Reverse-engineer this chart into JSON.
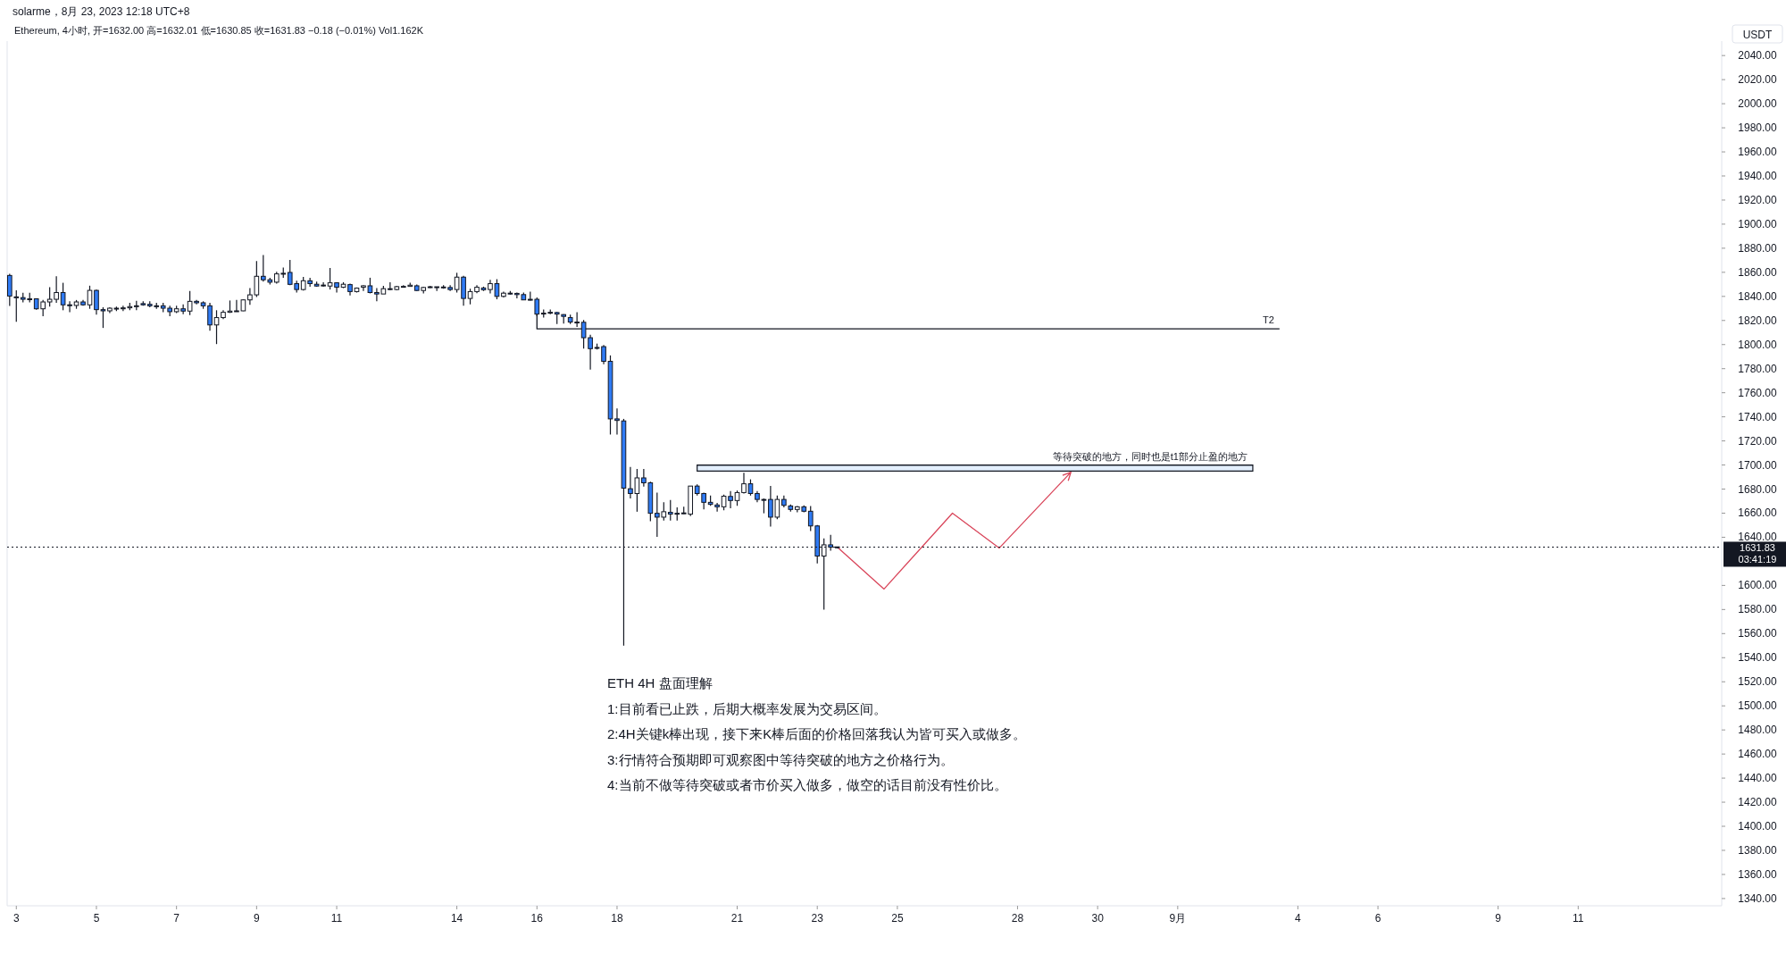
{
  "chart_data": {
    "type": "candlestick",
    "title": "Ethereum, 4小时, 开=1632.00 高=1632.01 低=1630.85 收=1631.83 −0.18 (−0.01%) Vol1.162K",
    "ylabel": "USDT",
    "x": [
      "2023-08-02T20:00",
      "2023-08-03T00:00",
      "2023-08-03T04:00",
      "2023-08-03T08:00",
      "2023-08-03T12:00",
      "2023-08-03T16:00",
      "2023-08-03T20:00",
      "2023-08-04T00:00",
      "2023-08-04T04:00",
      "2023-08-04T08:00",
      "2023-08-04T12:00",
      "2023-08-04T16:00",
      "2023-08-04T20:00",
      "2023-08-05T00:00",
      "2023-08-05T04:00",
      "2023-08-05T08:00",
      "2023-08-05T12:00",
      "2023-08-05T16:00",
      "2023-08-05T20:00",
      "2023-08-06T00:00",
      "2023-08-06T04:00",
      "2023-08-06T08:00",
      "2023-08-06T12:00",
      "2023-08-06T16:00",
      "2023-08-06T20:00",
      "2023-08-07T00:00",
      "2023-08-07T04:00",
      "2023-08-07T08:00",
      "2023-08-07T12:00",
      "2023-08-07T16:00",
      "2023-08-07T20:00",
      "2023-08-08T00:00",
      "2023-08-08T04:00",
      "2023-08-08T08:00",
      "2023-08-08T12:00",
      "2023-08-08T16:00",
      "2023-08-08T20:00",
      "2023-08-09T00:00",
      "2023-08-09T04:00",
      "2023-08-09T08:00",
      "2023-08-09T12:00",
      "2023-08-09T16:00",
      "2023-08-09T20:00",
      "2023-08-10T00:00",
      "2023-08-10T04:00",
      "2023-08-10T08:00",
      "2023-08-10T12:00",
      "2023-08-10T16:00",
      "2023-08-10T20:00",
      "2023-08-11T00:00",
      "2023-08-11T04:00",
      "2023-08-11T08:00",
      "2023-08-11T12:00",
      "2023-08-11T16:00",
      "2023-08-11T20:00",
      "2023-08-12T00:00",
      "2023-08-12T04:00",
      "2023-08-12T08:00",
      "2023-08-12T12:00",
      "2023-08-12T16:00",
      "2023-08-12T20:00",
      "2023-08-13T00:00",
      "2023-08-13T04:00",
      "2023-08-13T08:00",
      "2023-08-13T12:00",
      "2023-08-13T16:00",
      "2023-08-13T20:00",
      "2023-08-14T00:00",
      "2023-08-14T04:00",
      "2023-08-14T08:00",
      "2023-08-14T12:00",
      "2023-08-14T16:00",
      "2023-08-14T20:00",
      "2023-08-15T00:00",
      "2023-08-15T04:00",
      "2023-08-15T08:00",
      "2023-08-15T12:00",
      "2023-08-15T16:00",
      "2023-08-15T20:00",
      "2023-08-16T00:00",
      "2023-08-16T04:00",
      "2023-08-16T08:00",
      "2023-08-16T12:00",
      "2023-08-16T16:00",
      "2023-08-16T20:00",
      "2023-08-17T00:00",
      "2023-08-17T04:00",
      "2023-08-17T08:00",
      "2023-08-17T12:00",
      "2023-08-17T16:00",
      "2023-08-17T20:00",
      "2023-08-18T00:00",
      "2023-08-18T04:00",
      "2023-08-18T08:00",
      "2023-08-18T12:00",
      "2023-08-18T16:00",
      "2023-08-18T20:00",
      "2023-08-19T00:00",
      "2023-08-19T04:00",
      "2023-08-19T08:00",
      "2023-08-19T12:00",
      "2023-08-19T16:00",
      "2023-08-19T20:00",
      "2023-08-20T00:00",
      "2023-08-20T04:00",
      "2023-08-20T08:00",
      "2023-08-20T12:00",
      "2023-08-20T16:00",
      "2023-08-20T20:00",
      "2023-08-21T00:00",
      "2023-08-21T04:00",
      "2023-08-21T08:00",
      "2023-08-21T12:00",
      "2023-08-21T16:00",
      "2023-08-21T20:00",
      "2023-08-22T00:00",
      "2023-08-22T04:00",
      "2023-08-22T08:00",
      "2023-08-22T12:00",
      "2023-08-22T16:00",
      "2023-08-22T20:00",
      "2023-08-23T00:00",
      "2023-08-23T04:00",
      "2023-08-23T08:00",
      "2023-08-23T12:00"
    ],
    "ohlc": [
      [
        1857.4,
        1858.7,
        1832,
        1840.3
      ],
      [
        1839.5,
        1845,
        1819,
        1839.6
      ],
      [
        1839,
        1843,
        1835,
        1837.6
      ],
      [
        1838,
        1843,
        1835,
        1837.8
      ],
      [
        1838,
        1838.3,
        1829,
        1829.7
      ],
      [
        1829.7,
        1837,
        1823.6,
        1835.4
      ],
      [
        1835.4,
        1847.6,
        1831.5,
        1837.6
      ],
      [
        1837.6,
        1856.7,
        1834.7,
        1843.2
      ],
      [
        1843.2,
        1851.3,
        1828.5,
        1833
      ],
      [
        1833,
        1835.9,
        1826.8,
        1832.5
      ],
      [
        1832.5,
        1837,
        1829.7,
        1835.4
      ],
      [
        1835.4,
        1837,
        1832.2,
        1833
      ],
      [
        1833,
        1848.9,
        1829.7,
        1845
      ],
      [
        1845,
        1845.7,
        1824.9,
        1829
      ],
      [
        1829,
        1831,
        1813.8,
        1828
      ],
      [
        1828,
        1831,
        1826.1,
        1830.2
      ],
      [
        1830.2,
        1831.5,
        1827.8,
        1829.7
      ],
      [
        1829.7,
        1832.2,
        1827.8,
        1830.5
      ],
      [
        1830.5,
        1834.7,
        1828.5,
        1831.5
      ],
      [
        1831.5,
        1836.4,
        1828.5,
        1832.2
      ],
      [
        1834,
        1836,
        1832.2,
        1833
      ],
      [
        1833.4,
        1835.9,
        1831,
        1832.2
      ],
      [
        1832.2,
        1834.7,
        1829.7,
        1832
      ],
      [
        1832.2,
        1834.7,
        1826.8,
        1830.2
      ],
      [
        1830.2,
        1832.2,
        1823.6,
        1827.3
      ],
      [
        1827.3,
        1832.2,
        1826.1,
        1829.7
      ],
      [
        1829.7,
        1833.4,
        1825.3,
        1827.8
      ],
      [
        1827.8,
        1844.5,
        1824.4,
        1835.9
      ],
      [
        1835.9,
        1837.1,
        1833.4,
        1834.7
      ],
      [
        1834.7,
        1835.9,
        1829.7,
        1832.2
      ],
      [
        1832.2,
        1834.7,
        1811.4,
        1816.3
      ],
      [
        1816.3,
        1828.5,
        1800.4,
        1822.4
      ],
      [
        1822.4,
        1828.5,
        1821.2,
        1826.8
      ],
      [
        1826.8,
        1836.6,
        1826.3,
        1827.8
      ],
      [
        1827.8,
        1837.1,
        1827.3,
        1828
      ],
      [
        1828,
        1837.4,
        1827.8,
        1837.1
      ],
      [
        1837.1,
        1846.9,
        1833,
        1841.3
      ],
      [
        1841.3,
        1869.4,
        1839.5,
        1856.7
      ],
      [
        1856.7,
        1874.3,
        1852.3,
        1853.8
      ],
      [
        1853.8,
        1855.5,
        1849.8,
        1851.8
      ],
      [
        1851.8,
        1860.4,
        1850.6,
        1858.7
      ],
      [
        1859,
        1864,
        1855.5,
        1859.2
      ],
      [
        1859.9,
        1870.2,
        1849.3,
        1850
      ],
      [
        1850.6,
        1853,
        1843.2,
        1845.7
      ],
      [
        1845.7,
        1856.2,
        1844.9,
        1853
      ],
      [
        1853,
        1855.5,
        1848.1,
        1850.6
      ],
      [
        1850.1,
        1852.3,
        1848.1,
        1848.6
      ],
      [
        1849.3,
        1851.8,
        1848.1,
        1849.4
      ],
      [
        1848.6,
        1863.6,
        1845.7,
        1851.3
      ],
      [
        1851.3,
        1851.8,
        1843.2,
        1847.6
      ],
      [
        1847.6,
        1851.8,
        1846.9,
        1850.1
      ],
      [
        1849.8,
        1850.6,
        1840.8,
        1844
      ],
      [
        1844,
        1847.4,
        1843.2,
        1846.9
      ],
      [
        1847.6,
        1849.3,
        1844.5,
        1848.8
      ],
      [
        1848.8,
        1855.5,
        1842.5,
        1843.2
      ],
      [
        1843.2,
        1846.9,
        1835.9,
        1842
      ],
      [
        1842,
        1848.8,
        1842,
        1846.4
      ],
      [
        1845.7,
        1851.8,
        1845,
        1846.4
      ],
      [
        1845.7,
        1848.8,
        1845,
        1848.1
      ],
      [
        1848.1,
        1849.3,
        1847.4,
        1848.3
      ],
      [
        1848.3,
        1851.3,
        1848.1,
        1849.3
      ],
      [
        1848.8,
        1849.8,
        1844.5,
        1844.9
      ],
      [
        1844.9,
        1848.1,
        1842.5,
        1847.4
      ],
      [
        1847.4,
        1848.8,
        1846.9,
        1848
      ],
      [
        1848,
        1848.1,
        1844.5,
        1847.6
      ],
      [
        1847.6,
        1849.3,
        1846.4,
        1847.8
      ],
      [
        1847.4,
        1849.3,
        1844.5,
        1845.7
      ],
      [
        1845.7,
        1859.6,
        1843.2,
        1856
      ],
      [
        1856,
        1857.2,
        1832.2,
        1838.3
      ],
      [
        1838.3,
        1846.4,
        1833.4,
        1844
      ],
      [
        1844,
        1849.3,
        1842.7,
        1847.6
      ],
      [
        1847,
        1848.1,
        1844.5,
        1845.5
      ],
      [
        1845.7,
        1853.8,
        1842.5,
        1850.6
      ],
      [
        1850.6,
        1854.3,
        1837.6,
        1840
      ],
      [
        1840,
        1844,
        1839.1,
        1842.7
      ],
      [
        1842.7,
        1844.5,
        1841.5,
        1842.5
      ],
      [
        1842.5,
        1843.2,
        1838.3,
        1841.5
      ],
      [
        1841.5,
        1843.2,
        1837.1,
        1837.1
      ],
      [
        1837.6,
        1844,
        1836.6,
        1837.4
      ],
      [
        1837.6,
        1839.1,
        1823.6,
        1825.3
      ],
      [
        1826,
        1829.2,
        1822.4,
        1826.1
      ],
      [
        1826.1,
        1829.2,
        1825.3,
        1826.8
      ],
      [
        1826.6,
        1827.3,
        1817,
        1825.3
      ],
      [
        1824.9,
        1825.3,
        1817.5,
        1823.4
      ],
      [
        1822.4,
        1824.9,
        1817,
        1818.7
      ],
      [
        1818.7,
        1826.8,
        1814.6,
        1818.5
      ],
      [
        1818.5,
        1820.4,
        1796.7,
        1805.7
      ],
      [
        1805.7,
        1808.2,
        1779.2,
        1796.6
      ],
      [
        1797.6,
        1800.8,
        1795.9,
        1797
      ],
      [
        1798.3,
        1799.6,
        1783.6,
        1786.1
      ],
      [
        1786.1,
        1791,
        1725.3,
        1738.3
      ],
      [
        1738.3,
        1746.9,
        1725.3,
        1737
      ],
      [
        1736.6,
        1738.3,
        1550,
        1680.8
      ],
      [
        1680.3,
        1698.4,
        1672.2,
        1676.3
      ],
      [
        1676.3,
        1696.7,
        1661.2,
        1689.3
      ],
      [
        1689.3,
        1696.7,
        1682,
        1685.2
      ],
      [
        1685.2,
        1686.1,
        1653.3,
        1659.9
      ],
      [
        1659.9,
        1677.1,
        1640.3,
        1656.7
      ],
      [
        1656.7,
        1669,
        1653.8,
        1661.2
      ],
      [
        1660.7,
        1670.9,
        1653.8,
        1659.2
      ],
      [
        1659.9,
        1664.8,
        1653.8,
        1659.8
      ],
      [
        1659.8,
        1665.3,
        1659.2,
        1660.2
      ],
      [
        1659.2,
        1682.6,
        1657.5,
        1682.5
      ],
      [
        1682.5,
        1684,
        1674.6,
        1676.3
      ],
      [
        1676.3,
        1677.1,
        1663.1,
        1669
      ],
      [
        1669,
        1674.6,
        1666.1,
        1667.3
      ],
      [
        1666.8,
        1668.5,
        1661.2,
        1665.3
      ],
      [
        1665.3,
        1675.4,
        1662.4,
        1674.1
      ],
      [
        1673.9,
        1678.3,
        1664.1,
        1670.5
      ],
      [
        1670.5,
        1678.8,
        1666.1,
        1677.1
      ],
      [
        1677.1,
        1693.5,
        1676.3,
        1684.4
      ],
      [
        1684.4,
        1688.1,
        1674.6,
        1676.3
      ],
      [
        1676.3,
        1678.3,
        1669,
        1671.4
      ],
      [
        1671.4,
        1672.2,
        1659.9,
        1671.2
      ],
      [
        1671.4,
        1682.7,
        1648.9,
        1656.7
      ],
      [
        1656.7,
        1674.6,
        1655,
        1671.4
      ],
      [
        1671.4,
        1674.6,
        1664.8,
        1666.5
      ],
      [
        1666,
        1667.3,
        1661.2,
        1663.1
      ],
      [
        1663.1,
        1666,
        1660.7,
        1665.3
      ],
      [
        1665.3,
        1666.5,
        1660.7,
        1661.6
      ],
      [
        1661.6,
        1666,
        1645.2,
        1649.4
      ],
      [
        1649.4,
        1650.1,
        1618.3,
        1624.4
      ],
      [
        1624.4,
        1639.1,
        1579.8,
        1633.7
      ],
      [
        1633.7,
        1642,
        1628.8,
        1631.8
      ],
      [
        1632.0,
        1632.01,
        1630.85,
        1631.83
      ]
    ],
    "series": [
      {
        "type": "line",
        "name": "T2",
        "color": "#131722",
        "x": [
          "2023-08-16T00:00",
          "2023-08-16T00:00",
          "2023-09-03T13:00"
        ],
        "values": [
          1826,
          1813,
          1813
        ]
      },
      {
        "type": "line",
        "name": "等待突破的地方，同时也是t1部分止盈的地方",
        "color": "#131722",
        "x": [
          "2023-08-20T00:00",
          "2023-09-02T21:00"
        ],
        "values": [
          1700,
          1700
        ],
        "lower": [
          1695,
          1695
        ],
        "upper": [
          1700,
          1700
        ]
      },
      {
        "type": "line",
        "color": "#d9455a",
        "x": [
          "2023-08-23T12:00",
          "2023-08-24T16:00",
          "2023-08-26T09:00",
          "2023-08-27T13:00",
          "2023-08-29T08:00"
        ],
        "values": [
          1631.8,
          1597,
          1660,
          1631,
          1694
        ]
      }
    ],
    "ref_lines": [
      {
        "axis": "y",
        "value": 1631.83,
        "label": "1631.83\n03:41:19",
        "color": "#131722",
        "line_style": "dotted"
      }
    ],
    "xlim": [
      "2023-08-02T18:30",
      "2023-09-14T14:00"
    ],
    "ylim": [
      1334,
      2052
    ],
    "xticks": [
      {
        "value": "2023-08-03",
        "label": "3"
      },
      {
        "value": "2023-08-05",
        "label": "5"
      },
      {
        "value": "2023-08-07",
        "label": "7"
      },
      {
        "value": "2023-08-09",
        "label": "9"
      },
      {
        "value": "2023-08-11",
        "label": "11"
      },
      {
        "value": "2023-08-14",
        "label": "14"
      },
      {
        "value": "2023-08-16",
        "label": "16"
      },
      {
        "value": "2023-08-18",
        "label": "18"
      },
      {
        "value": "2023-08-21",
        "label": "21"
      },
      {
        "value": "2023-08-23",
        "label": "23"
      },
      {
        "value": "2023-08-25",
        "label": "25"
      },
      {
        "value": "2023-08-28",
        "label": "28"
      },
      {
        "value": "2023-08-30",
        "label": "30"
      },
      {
        "value": "2023-09-01",
        "label": "9月"
      },
      {
        "value": "2023-09-04",
        "label": "4"
      },
      {
        "value": "2023-09-06",
        "label": "6"
      },
      {
        "value": "2023-09-09",
        "label": "9"
      },
      {
        "value": "2023-09-11",
        "label": "11"
      }
    ],
    "yticks": [
      {
        "value": 1340,
        "label": "1340.00"
      },
      {
        "value": 1360,
        "label": "1360.00"
      },
      {
        "value": 1380,
        "label": "1380.00"
      },
      {
        "value": 1400,
        "label": "1400.00"
      },
      {
        "value": 1420,
        "label": "1420.00"
      },
      {
        "value": 1440,
        "label": "1440.00"
      },
      {
        "value": 1460,
        "label": "1460.00"
      },
      {
        "value": 1480,
        "label": "1480.00"
      },
      {
        "value": 1500,
        "label": "1500.00"
      },
      {
        "value": 1520,
        "label": "1520.00"
      },
      {
        "value": 1540,
        "label": "1540.00"
      },
      {
        "value": 1560,
        "label": "1560.00"
      },
      {
        "value": 1580,
        "label": "1580.00"
      },
      {
        "value": 1600,
        "label": "1600.00"
      },
      {
        "value": 1640,
        "label": "1640.00"
      },
      {
        "value": 1660,
        "label": "1660.00"
      },
      {
        "value": 1680,
        "label": "1680.00"
      },
      {
        "value": 1700,
        "label": "1700.00"
      },
      {
        "value": 1720,
        "label": "1720.00"
      },
      {
        "value": 1740,
        "label": "1740.00"
      },
      {
        "value": 1760,
        "label": "1760.00"
      },
      {
        "value": 1780,
        "label": "1780.00"
      },
      {
        "value": 1800,
        "label": "1800.00"
      },
      {
        "value": 1820,
        "label": "1820.00"
      },
      {
        "value": 1840,
        "label": "1840.00"
      },
      {
        "value": 1860,
        "label": "1860.00"
      },
      {
        "value": 1880,
        "label": "1880.00"
      },
      {
        "value": 1900,
        "label": "1900.00"
      },
      {
        "value": 1920,
        "label": "1920.00"
      },
      {
        "value": 1940,
        "label": "1940.00"
      },
      {
        "value": 1960,
        "label": "1960.00"
      },
      {
        "value": 1980,
        "label": "1980.00"
      },
      {
        "value": 2000,
        "label": "2000.00"
      },
      {
        "value": 2020,
        "label": "2020.00"
      },
      {
        "value": 2040,
        "label": "2040.00"
      }
    ],
    "annotations": [
      "solarme，8月 23, 2023 12:18 UTC+8",
      "ETH 4H 盘面理解",
      "1:目前看已止跌，后期大概率发展为交易区间。",
      "2:4H关键k棒出现，接下来K棒后面的价格回落我认为皆可买入或做多。",
      "3:行情符合预期即可观察图中等待突破的地方之价格行为。",
      "4:当前不做等待突破或者市价买入做多，做空的话目前没有性价比。"
    ],
    "grid": false,
    "legend": false
  }
}
